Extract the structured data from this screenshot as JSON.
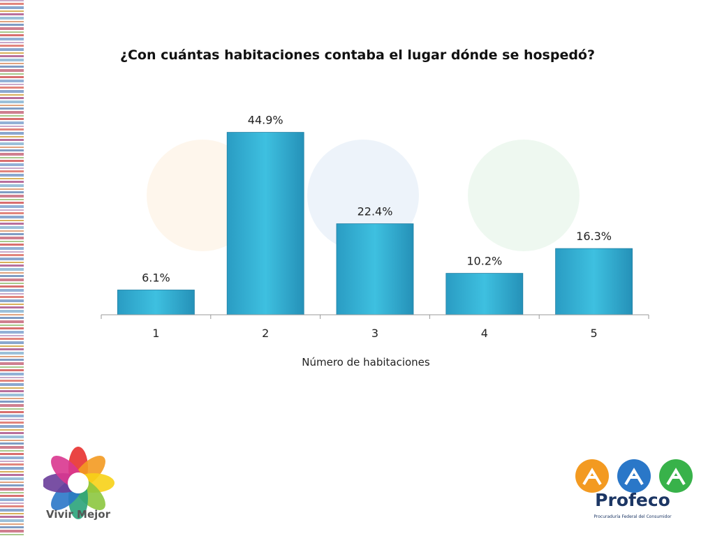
{
  "chart_data": {
    "type": "bar",
    "title": "¿Con cuántas habitaciones contaba el lugar dónde se hospedó?",
    "xlabel": "Número de habitaciones",
    "ylabel": "",
    "categories": [
      "1",
      "2",
      "3",
      "4",
      "5"
    ],
    "values": [
      6.1,
      44.9,
      22.4,
      10.2,
      16.3
    ],
    "data_labels": [
      "6.1%",
      "44.9%",
      "22.4%",
      "10.2%",
      "16.3%"
    ],
    "unit": "%",
    "ylim": [
      0,
      45
    ],
    "grid": false,
    "legend": "none",
    "bar_color": "#3ab5d8"
  },
  "branding": {
    "left_logo_text": "Vivir Mejor",
    "right_logo_name": "Profeco",
    "right_logo_subtitle": "Procuraduría Federal del Consumidor"
  }
}
